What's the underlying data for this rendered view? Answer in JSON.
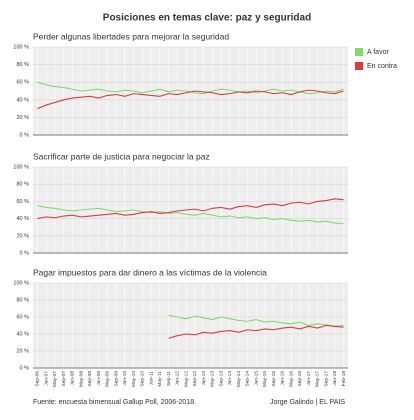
{
  "title": "Posiciones en temas clave: paz y seguridad",
  "footer": {
    "source": "Fuente: encuesta bimensual Gallup Poll, 2006-2018.",
    "credit": "Jorge Galindo | EL PAIS"
  },
  "chart_data": [
    {
      "type": "line",
      "title": "Perder algunas libertades para mejorar la seguridad",
      "ylim": [
        0,
        100
      ],
      "yticks": [
        {
          "value": 0,
          "label": "0 %"
        },
        {
          "value": 20,
          "label": "20 %"
        },
        {
          "value": 40,
          "label": "40 %"
        },
        {
          "value": 60,
          "label": "60 %"
        },
        {
          "value": 80,
          "label": "80 %"
        },
        {
          "value": 100,
          "label": "100 %"
        }
      ],
      "legend": "top-right",
      "series": [
        {
          "name": "A favor",
          "color": "#7ddc6a",
          "values": [
            60,
            57,
            55,
            54,
            52,
            50,
            51,
            52,
            50,
            49,
            51,
            50,
            48,
            50,
            52,
            49,
            51,
            50,
            48,
            47,
            50,
            52,
            51,
            49,
            50,
            48,
            50,
            52,
            50,
            51,
            49,
            47,
            48,
            50,
            49,
            52
          ]
        },
        {
          "name": "En contra",
          "color": "#e0393a",
          "values": [
            30,
            34,
            37,
            40,
            42,
            43,
            44,
            42,
            45,
            46,
            44,
            47,
            46,
            45,
            44,
            47,
            46,
            48,
            50,
            49,
            48,
            46,
            47,
            49,
            48,
            50,
            49,
            47,
            48,
            46,
            49,
            51,
            50,
            48,
            47,
            50
          ]
        }
      ]
    },
    {
      "type": "line",
      "title": "Sacrificar parte de justicia para negociar la paz",
      "ylim": [
        0,
        100
      ],
      "yticks": [
        {
          "value": 0,
          "label": "0 %"
        },
        {
          "value": 20,
          "label": "20 %"
        },
        {
          "value": 40,
          "label": "40 %"
        },
        {
          "value": 60,
          "label": "60 %"
        },
        {
          "value": 80,
          "label": "80 %"
        },
        {
          "value": 100,
          "label": "100 %"
        }
      ],
      "series": [
        {
          "color": "#7ddc6a",
          "values": [
            55,
            53,
            52,
            50,
            49,
            50,
            51,
            52,
            50,
            48,
            49,
            50,
            48,
            47,
            48,
            46,
            47,
            45,
            44,
            46,
            44,
            42,
            43,
            41,
            42,
            40,
            41,
            39,
            40,
            38,
            37,
            38,
            36,
            37,
            35,
            34
          ]
        },
        {
          "color": "#e0393a",
          "values": [
            40,
            42,
            41,
            43,
            44,
            42,
            43,
            44,
            45,
            46,
            44,
            45,
            47,
            48,
            46,
            47,
            49,
            50,
            51,
            49,
            52,
            53,
            51,
            54,
            55,
            53,
            56,
            57,
            55,
            58,
            59,
            57,
            60,
            61,
            63,
            62
          ]
        }
      ]
    },
    {
      "type": "line",
      "title": "Pagar impuestos para dar dinero a las víctimas de la violencia",
      "ylim": [
        0,
        100
      ],
      "yticks": [
        {
          "value": 0,
          "label": "0 %"
        },
        {
          "value": 20,
          "label": "20 %"
        },
        {
          "value": 40,
          "label": "40 %"
        },
        {
          "value": 60,
          "label": "60 %"
        },
        {
          "value": 80,
          "label": "80 %"
        },
        {
          "value": 100,
          "label": "100 %"
        }
      ],
      "categories": [
        "Sep-06",
        "Jan-07",
        "May-07",
        "Sep-07",
        "Jan-08",
        "May-08",
        "Sep-08",
        "Jan-09",
        "May-09",
        "Sep-09",
        "Jan-10",
        "May-10",
        "Sep-10",
        "Jan-11",
        "May-11",
        "Sep-11",
        "Jan-12",
        "May-12",
        "Sep-12",
        "Jan-13",
        "May-13",
        "Sep-13",
        "Jan-14",
        "May-14",
        "Sep-14",
        "Jan-15",
        "May-15",
        "Sep-15",
        "Jan-16",
        "May-16",
        "Sep-16",
        "Jan-17",
        "May-17",
        "Sep-17",
        "Jan-18",
        "Feb-18"
      ],
      "series": [
        {
          "color": "#7ddc6a",
          "values": [
            null,
            null,
            null,
            null,
            null,
            null,
            null,
            null,
            null,
            null,
            null,
            null,
            null,
            null,
            null,
            62,
            60,
            58,
            61,
            59,
            57,
            60,
            58,
            56,
            55,
            57,
            54,
            55,
            53,
            52,
            54,
            50,
            52,
            51,
            49,
            50
          ]
        },
        {
          "color": "#e0393a",
          "values": [
            null,
            null,
            null,
            null,
            null,
            null,
            null,
            null,
            null,
            null,
            null,
            null,
            null,
            null,
            null,
            35,
            38,
            40,
            39,
            42,
            41,
            43,
            44,
            42,
            45,
            44,
            46,
            45,
            47,
            48,
            46,
            49,
            47,
            50,
            49,
            48
          ]
        }
      ]
    }
  ]
}
